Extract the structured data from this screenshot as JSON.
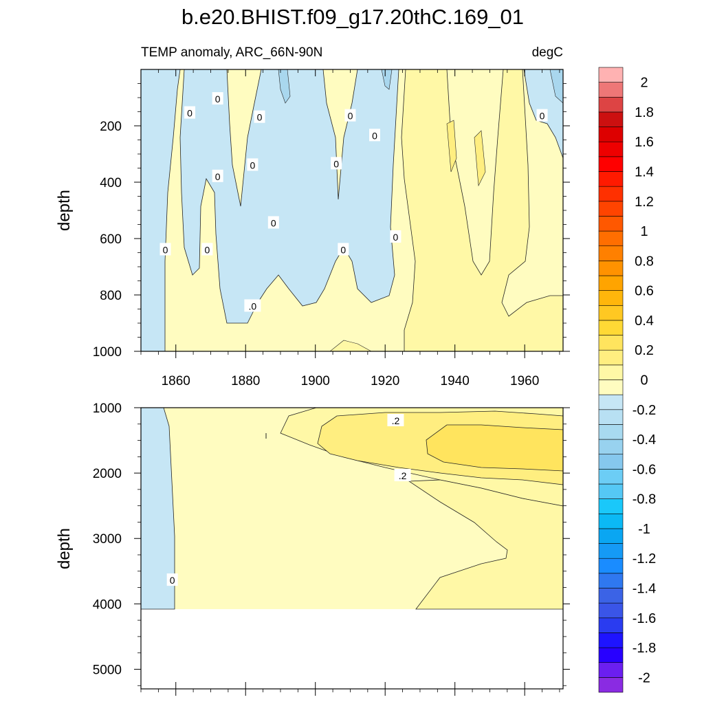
{
  "chart_data": {
    "title": "b.e20.BHIST.f09_g17.20thC.169_01",
    "colorbar": {
      "units": "degC",
      "levels": [
        -2.1,
        -2,
        -1.9,
        -1.8,
        -1.7,
        -1.6,
        -1.5,
        -1.4,
        -1.3,
        -1.2,
        -1.1,
        -1,
        -0.9,
        -0.8,
        -0.7,
        -0.6,
        -0.5,
        -0.4,
        -0.3,
        -0.2,
        -0.1,
        0,
        0.1,
        0.2,
        0.3,
        0.4,
        0.5,
        0.6,
        0.7,
        0.8,
        0.9,
        1,
        1.1,
        1.2,
        1.3,
        1.4,
        1.5,
        1.6,
        1.7,
        1.8,
        1.9,
        2,
        2.1
      ],
      "tick_labels": [
        "2",
        "1.8",
        "1.6",
        "1.4",
        "1.2",
        "1",
        "0.8",
        "0.6",
        "0.4",
        "0.2",
        "0",
        "-0.2",
        "-0.4",
        "-0.6",
        "-0.8",
        "-1",
        "-1.2",
        "-1.4",
        "-1.6",
        "-1.8",
        "-2"
      ],
      "colors_low_to_high": [
        "#8a2be2",
        "#6b1ff0",
        "#2800ff",
        "#1e14ff",
        "#2a3cf0",
        "#3a55e8",
        "#3b63e6",
        "#2f78f0",
        "#1a8cff",
        "#159af5",
        "#0aa6f2",
        "#0bb9f5",
        "#1ac8fa",
        "#55c8f5",
        "#6ccdf5",
        "#86c8ee",
        "#98d2ef",
        "#a8daf0",
        "#b8e0f3",
        "#c6e6f5",
        "#fffcc0",
        "#fff8a6",
        "#ffee80",
        "#ffe45e",
        "#ffd935",
        "#ffc822",
        "#ffb60b",
        "#ffa400",
        "#ff9200",
        "#ff8000",
        "#ff6e00",
        "#ff5800",
        "#ff4400",
        "#ff3000",
        "#ff1a00",
        "#ff0000",
        "#ee0000",
        "#dd0000",
        "#cc1010",
        "#dd4444",
        "#ee7777",
        "#ffb2b2"
      ]
    },
    "panels": [
      {
        "type": "contour",
        "subtitle_left": "TEMP anomaly, ARC_66N-90N",
        "subtitle_right": "degC",
        "ylabel": "depth",
        "xlim": [
          1850,
          1971
        ],
        "ylim": [
          1000,
          0
        ],
        "xticks": [
          1860,
          1880,
          1900,
          1920,
          1940,
          1960
        ],
        "yticks": [
          200,
          400,
          600,
          800,
          1000
        ],
        "contour_labels": [
          {
            "x": 1872,
            "y": 105,
            "text": "0"
          },
          {
            "x": 1864,
            "y": 155,
            "text": "0"
          },
          {
            "x": 1884,
            "y": 170,
            "text": "0"
          },
          {
            "x": 1910,
            "y": 165,
            "text": "0"
          },
          {
            "x": 1917,
            "y": 235,
            "text": "0"
          },
          {
            "x": 1965,
            "y": 165,
            "text": "0"
          },
          {
            "x": 1872,
            "y": 380,
            "text": "0"
          },
          {
            "x": 1882,
            "y": 340,
            "text": "0"
          },
          {
            "x": 1906,
            "y": 335,
            "text": "0"
          },
          {
            "x": 1888,
            "y": 545,
            "text": "0"
          },
          {
            "x": 1923,
            "y": 595,
            "text": "0"
          },
          {
            "x": 1857,
            "y": 640,
            "text": "0"
          },
          {
            "x": 1869,
            "y": 640,
            "text": "0"
          },
          {
            "x": 1908,
            "y": 640,
            "text": "0"
          },
          {
            "x": 1882,
            "y": 840,
            "text": ".0"
          }
        ]
      },
      {
        "type": "contour",
        "ylabel": "depth",
        "xlim": [
          1850,
          1971
        ],
        "ylim": [
          5300,
          1000
        ],
        "xticks": [
          1860,
          1880,
          1900,
          1920,
          1940,
          1960
        ],
        "yticks": [
          1000,
          2000,
          3000,
          4000,
          5000
        ],
        "data_bottom_depth": 4100,
        "contour_labels": [
          {
            "x": 1923,
            "y": 1200,
            "text": ".2"
          },
          {
            "x": 1925,
            "y": 2040,
            "text": ".2"
          },
          {
            "x": 1859,
            "y": 3640,
            "text": "0"
          }
        ]
      }
    ]
  }
}
